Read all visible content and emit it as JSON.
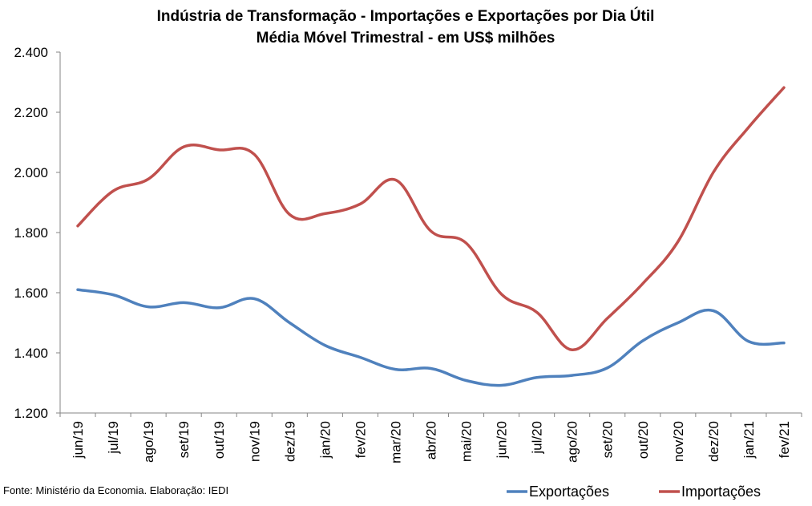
{
  "chart_data": {
    "type": "line",
    "title": "Indústria de Transformação - Importações e Exportações por Dia Útil",
    "subtitle": "Média Móvel Trimestral - em US$ milhões",
    "xlabel": "",
    "ylabel": "",
    "categories": [
      "jun/19",
      "jul/19",
      "ago/19",
      "set/19",
      "out/19",
      "nov/19",
      "dez/19",
      "jan/20",
      "fev/20",
      "mar/20",
      "abr/20",
      "mai/20",
      "jun/20",
      "jul/20",
      "ago/20",
      "set/20",
      "out/20",
      "nov/20",
      "dez/20",
      "jan/21",
      "fev/21"
    ],
    "ylim": [
      1200,
      2400
    ],
    "yticks": [
      1200,
      1400,
      1600,
      1800,
      2000,
      2200,
      2400
    ],
    "ytick_labels": [
      "1.200",
      "1.400",
      "1.600",
      "1.800",
      "2.000",
      "2.200",
      "2.400"
    ],
    "grid": false,
    "legend_position": "bottom-right",
    "series": [
      {
        "name": "Exportações",
        "color": "#4f81bd",
        "values": [
          1610,
          1593,
          1553,
          1567,
          1550,
          1580,
          1500,
          1425,
          1385,
          1345,
          1348,
          1308,
          1292,
          1318,
          1325,
          1350,
          1440,
          1500,
          1540,
          1438,
          1433
        ]
      },
      {
        "name": "Importações",
        "color": "#c0504d",
        "values": [
          1822,
          1938,
          1978,
          2085,
          2075,
          2060,
          1860,
          1863,
          1895,
          1975,
          1805,
          1765,
          1595,
          1535,
          1410,
          1515,
          1630,
          1770,
          2000,
          2150,
          2282
        ]
      }
    ]
  },
  "source_note": "Fonte: Ministério da Economia. Elaboração: IEDI"
}
